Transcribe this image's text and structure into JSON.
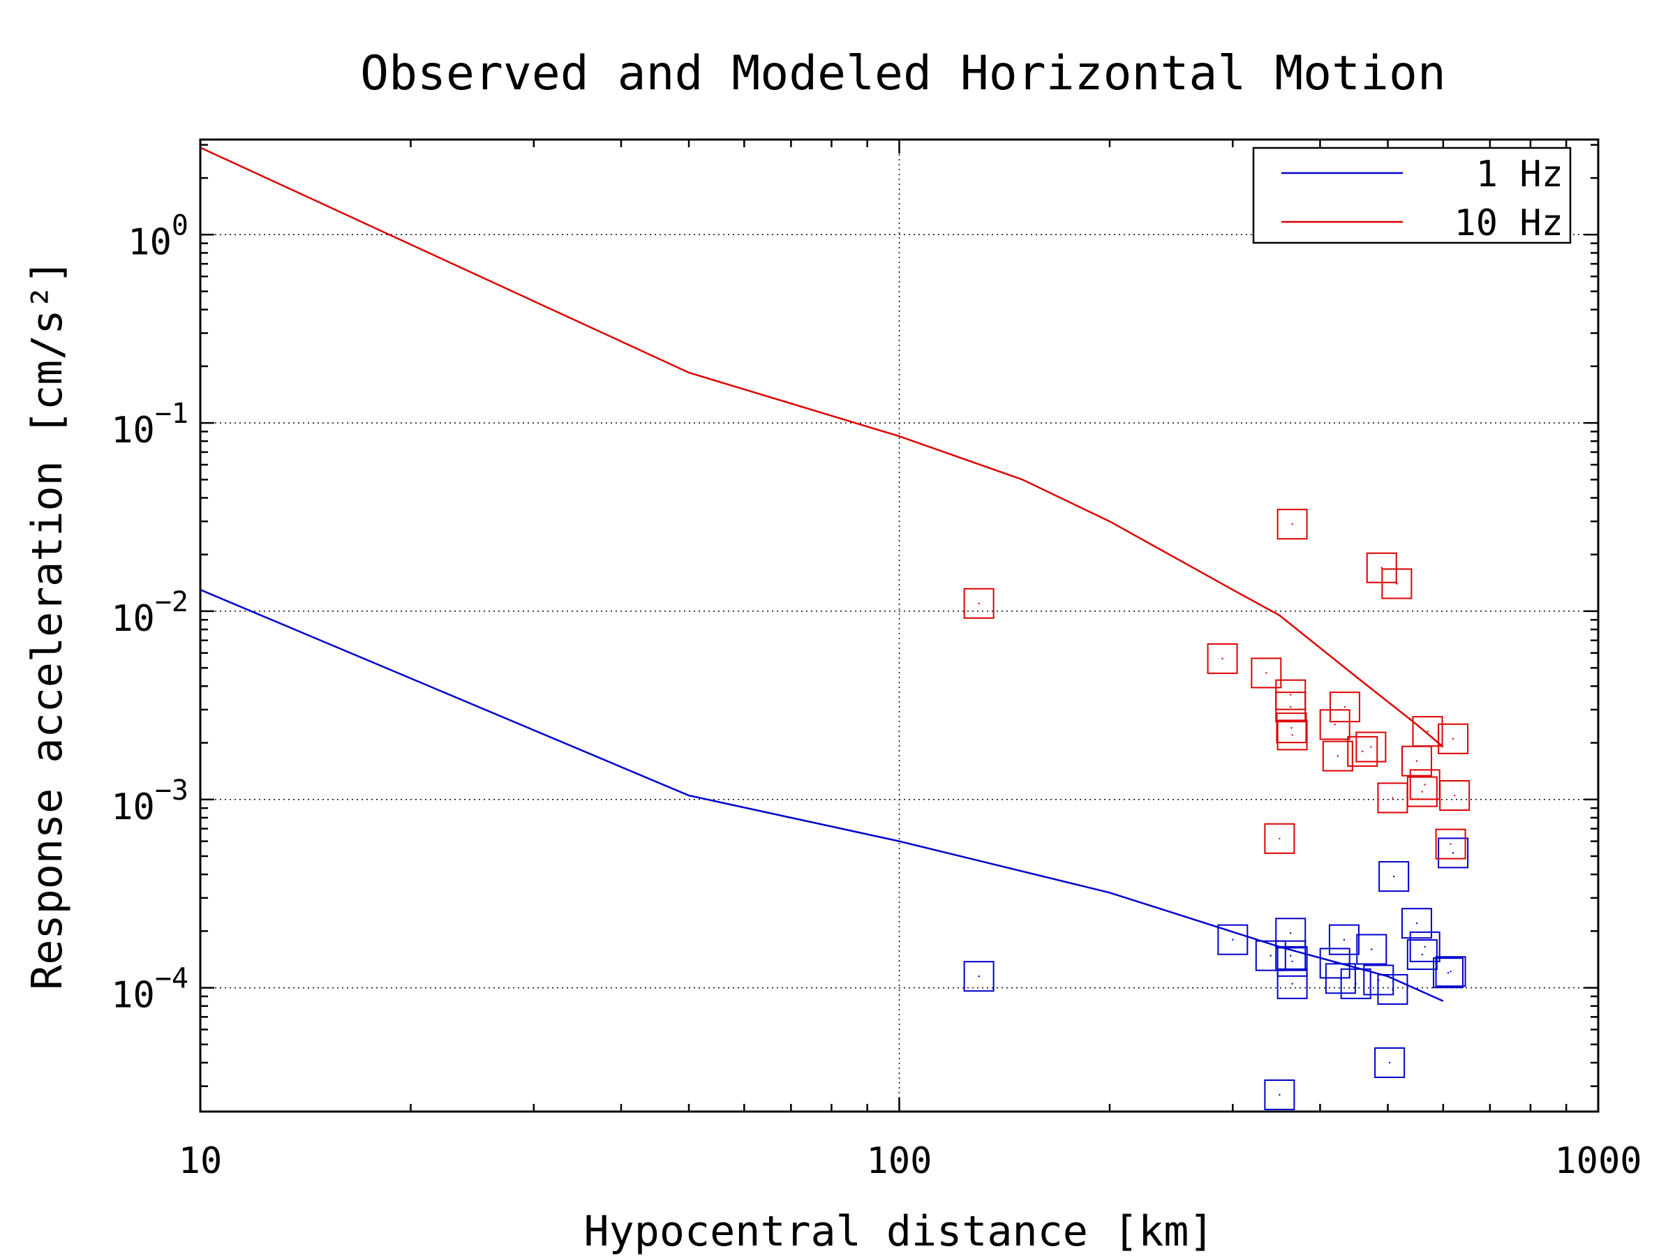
{
  "chart_data": {
    "type": "scatter",
    "title": "Observed and Modeled Horizontal Motion",
    "xlabel": "Hypocentral distance [km]",
    "ylabel": "Response acceleration [cm/s²]",
    "x_scale": "log",
    "y_scale": "log",
    "xlim": [
      10,
      1000
    ],
    "ylim": [
      2.2e-05,
      3.2
    ],
    "x_ticks": [
      10,
      100,
      1000
    ],
    "x_tick_labels": [
      "10",
      "100",
      "1000"
    ],
    "y_ticks": [
      0.0001,
      0.001,
      0.01,
      0.1,
      1
    ],
    "y_tick_labels": [
      {
        "base": "10",
        "exp": "−4"
      },
      {
        "base": "10",
        "exp": "−3"
      },
      {
        "base": "10",
        "exp": "−2"
      },
      {
        "base": "10",
        "exp": "−1"
      },
      {
        "base": "10",
        "exp": "0"
      }
    ],
    "grid": true,
    "legend_position": "top-right",
    "series": [
      {
        "name": "1 Hz",
        "color": "#0000cc",
        "model_line": [
          [
            10,
            0.013
          ],
          [
            50,
            0.00105
          ],
          [
            100,
            0.0006
          ],
          [
            200,
            0.00032
          ],
          [
            350,
            0.000165
          ],
          [
            500,
            0.000115
          ],
          [
            600,
            8.5e-05
          ]
        ],
        "observed": [
          [
            130,
            0.000115
          ],
          [
            300,
            0.00018
          ],
          [
            340,
            0.000148
          ],
          [
            350,
            2.7e-05
          ],
          [
            363,
            0.000195
          ],
          [
            363,
            0.000148
          ],
          [
            365,
            0.000138
          ],
          [
            365,
            0.000105
          ],
          [
            420,
            0.000135
          ],
          [
            428,
            0.000112
          ],
          [
            433,
            0.00018
          ],
          [
            450,
            0.000105
          ],
          [
            474,
            0.00016
          ],
          [
            485,
            0.00011
          ],
          [
            503,
            4e-05
          ],
          [
            508,
            9.8e-05
          ],
          [
            510,
            0.00039
          ],
          [
            550,
            0.00022
          ],
          [
            560,
            0.00015
          ],
          [
            565,
            0.000165
          ],
          [
            610,
            0.00012
          ],
          [
            615,
            0.000122
          ],
          [
            620,
            0.00052
          ]
        ]
      },
      {
        "name": "10 Hz",
        "color": "#dd0000",
        "model_line": [
          [
            10,
            2.9
          ],
          [
            50,
            0.185
          ],
          [
            100,
            0.085
          ],
          [
            150,
            0.05
          ],
          [
            200,
            0.03
          ],
          [
            300,
            0.013
          ],
          [
            350,
            0.0095
          ],
          [
            450,
            0.0045
          ],
          [
            550,
            0.0025
          ],
          [
            600,
            0.0019
          ]
        ],
        "observed": [
          [
            130,
            0.011
          ],
          [
            290,
            0.0056
          ],
          [
            335,
            0.0047
          ],
          [
            350,
            0.00062
          ],
          [
            363,
            0.0036
          ],
          [
            363,
            0.0031
          ],
          [
            364,
            0.0024
          ],
          [
            365,
            0.029
          ],
          [
            365,
            0.0022
          ],
          [
            420,
            0.0025
          ],
          [
            424,
            0.0017
          ],
          [
            434,
            0.0031
          ],
          [
            460,
            0.0018
          ],
          [
            473,
            0.0019
          ],
          [
            490,
            0.017
          ],
          [
            508,
            0.00102
          ],
          [
            515,
            0.014
          ],
          [
            550,
            0.0016
          ],
          [
            560,
            0.0011
          ],
          [
            565,
            0.0012
          ],
          [
            570,
            0.0023
          ],
          [
            615,
            0.00058
          ],
          [
            620,
            0.0021
          ],
          [
            623,
            0.00105
          ]
        ]
      }
    ]
  }
}
